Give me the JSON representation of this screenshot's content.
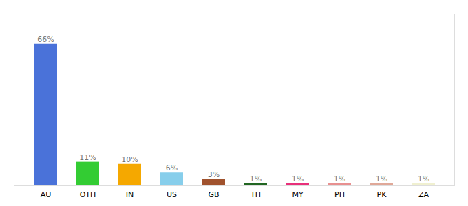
{
  "chart_data": {
    "type": "bar",
    "categories": [
      "AU",
      "OTH",
      "IN",
      "US",
      "GB",
      "TH",
      "MY",
      "PH",
      "PK",
      "ZA"
    ],
    "values": [
      66,
      11,
      10,
      6,
      3,
      1,
      1,
      1,
      1,
      1
    ],
    "value_labels": [
      "66%",
      "11%",
      "10%",
      "6%",
      "3%",
      "1%",
      "1%",
      "1%",
      "1%",
      "1%"
    ],
    "colors": [
      "#4a72d9",
      "#33cc33",
      "#f5a800",
      "#87ceeb",
      "#a0522d",
      "#226622",
      "#e8307a",
      "#e89090",
      "#e0a898",
      "#f0f0d0"
    ],
    "ylim": [
      0,
      80
    ],
    "data_labels": true,
    "tick_labels": "x"
  }
}
